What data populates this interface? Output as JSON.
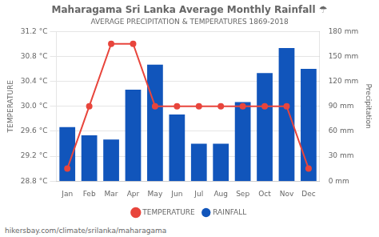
{
  "chart_data": {
    "type": "bar",
    "title": "Maharagama Sri Lanka Average Monthly Rainfall ☂",
    "subtitle": "AVERAGE PRECIPITATION & TEMPERATURES 1869-2018",
    "categories": [
      "Jan",
      "Feb",
      "Mar",
      "Apr",
      "May",
      "Jun",
      "Jul",
      "Aug",
      "Sep",
      "Oct",
      "Nov",
      "Dec"
    ],
    "series": [
      {
        "name": "TEMPERATURE",
        "type": "line",
        "color": "#e8453c",
        "marker": "circle",
        "values": [
          29.0,
          30.0,
          31.0,
          31.0,
          30.0,
          30.0,
          30.0,
          30.0,
          30.0,
          30.0,
          30.0,
          29.0
        ]
      },
      {
        "name": "RAINFALL",
        "type": "bar",
        "color": "#1155bb",
        "axis": "y2",
        "values": [
          65,
          55,
          50,
          110,
          140,
          80,
          45,
          45,
          95,
          130,
          160,
          135
        ]
      }
    ],
    "ylabel": "TEMPERATURE",
    "y2label": "Precipitation",
    "ylim": [
      28.8,
      31.2
    ],
    "yticks": [
      {
        "value": 28.8,
        "label": "28.8 °C"
      },
      {
        "value": 29.2,
        "label": "29.2 °C"
      },
      {
        "value": 29.6,
        "label": "29.6 °C"
      },
      {
        "value": 30.0,
        "label": "30.0 °C"
      },
      {
        "value": 30.4,
        "label": "30.4 °C"
      },
      {
        "value": 30.8,
        "label": "30.8 °C"
      },
      {
        "value": 31.2,
        "label": "31.2 °C"
      }
    ],
    "y2lim": [
      0,
      180
    ],
    "y2ticks": [
      {
        "value": 0,
        "label": "0 mm"
      },
      {
        "value": 30,
        "label": "30 mm"
      },
      {
        "value": 60,
        "label": "60 mm"
      },
      {
        "value": 90,
        "label": "90 mm"
      },
      {
        "value": 120,
        "label": "120 mm"
      },
      {
        "value": 150,
        "label": "150 mm"
      },
      {
        "value": 180,
        "label": "180 mm"
      }
    ],
    "grid": true,
    "legend": "bottom",
    "annotations": [
      "hikersbay.com/climate/srilanka/maharagama"
    ]
  }
}
